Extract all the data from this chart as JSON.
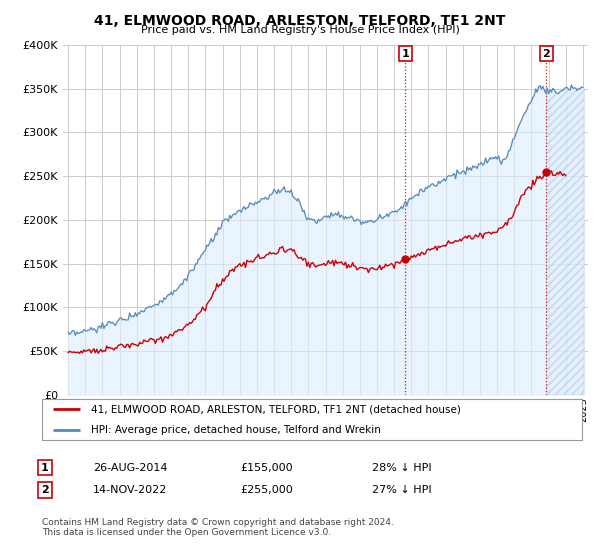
{
  "title": "41, ELMWOOD ROAD, ARLESTON, TELFORD, TF1 2NT",
  "subtitle": "Price paid vs. HM Land Registry's House Price Index (HPI)",
  "legend_line1": "41, ELMWOOD ROAD, ARLESTON, TELFORD, TF1 2NT (detached house)",
  "legend_line2": "HPI: Average price, detached house, Telford and Wrekin",
  "marker1_label": "1",
  "marker1_date": "26-AUG-2014",
  "marker1_price": "£155,000",
  "marker1_hpi": "28% ↓ HPI",
  "marker1_year": 2014.65,
  "marker1_value": 155000,
  "marker2_label": "2",
  "marker2_date": "14-NOV-2022",
  "marker2_price": "£255,000",
  "marker2_hpi": "27% ↓ HPI",
  "marker2_year": 2022.87,
  "marker2_value": 255000,
  "footer": "Contains HM Land Registry data © Crown copyright and database right 2024.\nThis data is licensed under the Open Government Licence v3.0.",
  "ylim": [
    0,
    400000
  ],
  "yticks": [
    0,
    50000,
    100000,
    150000,
    200000,
    250000,
    300000,
    350000,
    400000
  ],
  "red_color": "#cc0000",
  "blue_color": "#5588bb",
  "blue_fill": "#ddeeff",
  "marker_color": "#cc0000",
  "dashed_color": "#cc0000",
  "background_color": "#ffffff",
  "grid_color": "#cccccc",
  "hatch_color": "#aabbcc"
}
